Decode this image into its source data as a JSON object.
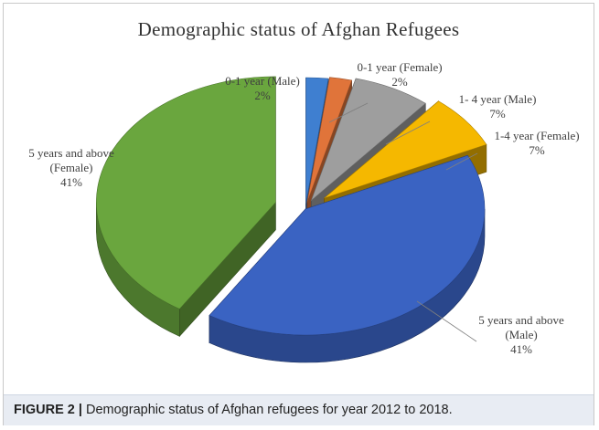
{
  "chart_data": {
    "type": "pie",
    "style": "3d-exploded",
    "title": "Demographic status of Afghan Refugees",
    "slices": [
      {
        "label_lines": [
          "0-1 year (Male)"
        ],
        "pct_text": "2%",
        "value": 2,
        "color": "#3f7fd0"
      },
      {
        "label_lines": [
          "0-1 year (Female)"
        ],
        "pct_text": "2%",
        "value": 2,
        "color": "#e0743a"
      },
      {
        "label_lines": [
          "1- 4 year (Male)"
        ],
        "pct_text": "7%",
        "value": 7,
        "color": "#9e9e9e"
      },
      {
        "label_lines": [
          "1-4 year (Female)"
        ],
        "pct_text": "7%",
        "value": 7,
        "color": "#f5b800"
      },
      {
        "label_lines": [
          "5 years and above",
          "(Male)"
        ],
        "pct_text": "41%",
        "value": 41,
        "color": "#3a63c2"
      },
      {
        "label_lines": [
          "5 years and above",
          "(Female)"
        ],
        "pct_text": "41%",
        "value": 41,
        "color": "#6aa63e"
      }
    ]
  },
  "caption": {
    "label": "FIGURE 2 |",
    "text": " Demographic status of Afghan refugees for year 2012 to 2018."
  }
}
